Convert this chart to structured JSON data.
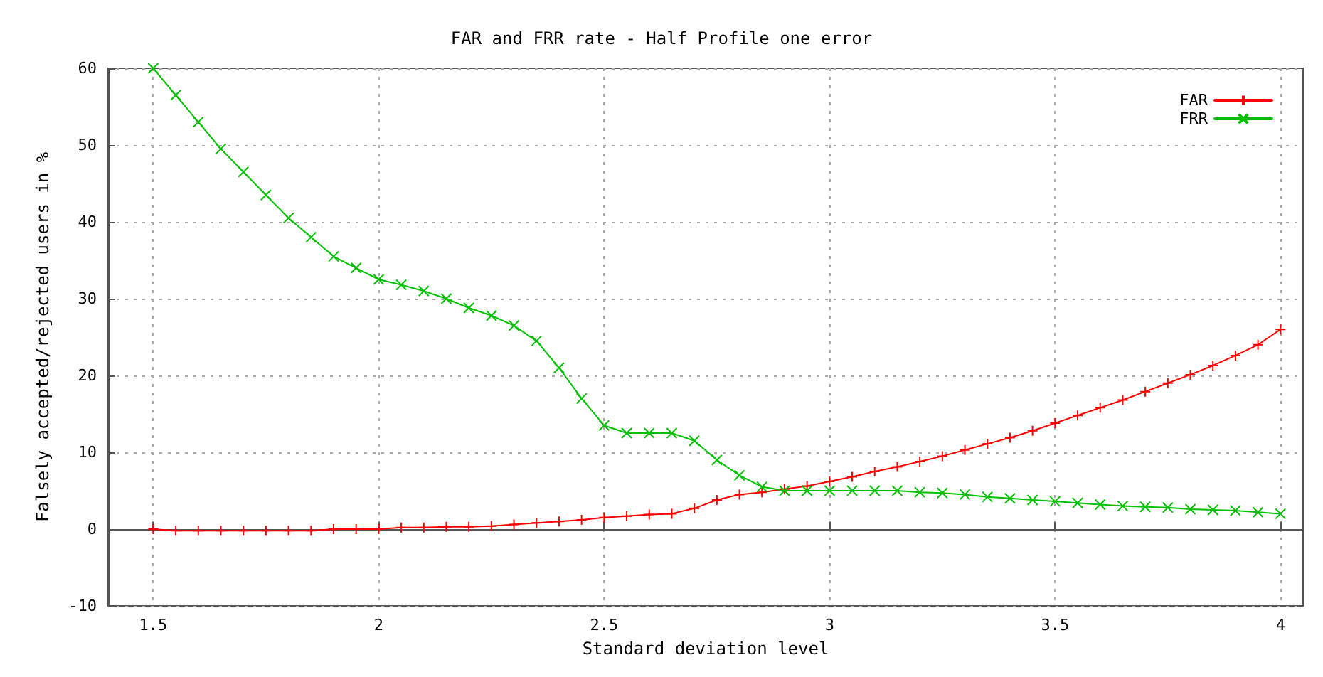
{
  "chart_data": {
    "type": "line",
    "title": "FAR and FRR rate - Half Profile one error",
    "xlabel": "Standard deviation level",
    "ylabel": "Falsely accepted/rejected users in %",
    "x": [
      1.5,
      1.55,
      1.6,
      1.65,
      1.7,
      1.75,
      1.8,
      1.85,
      1.9,
      1.95,
      2,
      2.05,
      2.1,
      2.15,
      2.2,
      2.25,
      2.3,
      2.35,
      2.4,
      2.45,
      2.5,
      2.55,
      2.6,
      2.65,
      2.7,
      2.75,
      2.8,
      2.85,
      2.9,
      2.95,
      3,
      3.05,
      3.1,
      3.15,
      3.2,
      3.25,
      3.3,
      3.35,
      3.4,
      3.45,
      3.5,
      3.55,
      3.6,
      3.65,
      3.7,
      3.75,
      3.8,
      3.85,
      3.9,
      3.95,
      4
    ],
    "series": [
      {
        "name": "FAR",
        "color": "#ff0000",
        "marker": "cross",
        "values": [
          0,
          -0.2,
          -0.2,
          -0.2,
          -0.2,
          -0.2,
          -0.2,
          -0.2,
          0,
          0,
          0,
          0.2,
          0.2,
          0.3,
          0.3,
          0.4,
          0.6,
          0.8,
          1.0,
          1.2,
          1.5,
          1.7,
          1.9,
          2.0,
          2.7,
          3.8,
          4.5,
          4.8,
          5.2,
          5.6,
          6.2,
          6.8,
          7.5,
          8.1,
          8.8,
          9.5,
          10.3,
          11.1,
          11.9,
          12.8,
          13.8,
          14.8,
          15.8,
          16.8,
          17.9,
          19.0,
          20.1,
          21.3,
          22.6,
          24.0,
          26
        ]
      },
      {
        "name": "FRR",
        "color": "#00c000",
        "marker": "x",
        "values": [
          60,
          56.5,
          53,
          49.5,
          46.5,
          43.5,
          40.5,
          38,
          35.5,
          34,
          32.5,
          31.8,
          31,
          30,
          28.8,
          27.8,
          26.5,
          24.5,
          21,
          17,
          13.5,
          12.5,
          12.5,
          12.5,
          11.5,
          9,
          7,
          5.5,
          5,
          5,
          5,
          5,
          5,
          5,
          4.8,
          4.7,
          4.5,
          4.2,
          4,
          3.8,
          3.6,
          3.4,
          3.2,
          3,
          2.9,
          2.8,
          2.6,
          2.5,
          2.4,
          2.2,
          2
        ]
      }
    ],
    "xlim": [
      1.4,
      4.05
    ],
    "xticks": [
      1.5,
      2,
      2.5,
      3,
      3.5,
      4
    ],
    "ylim": [
      -10,
      60
    ],
    "yticks": [
      -10,
      0,
      10,
      20,
      30,
      40,
      50,
      60
    ],
    "grid": true,
    "legend": "top right",
    "line_style": "solid"
  }
}
